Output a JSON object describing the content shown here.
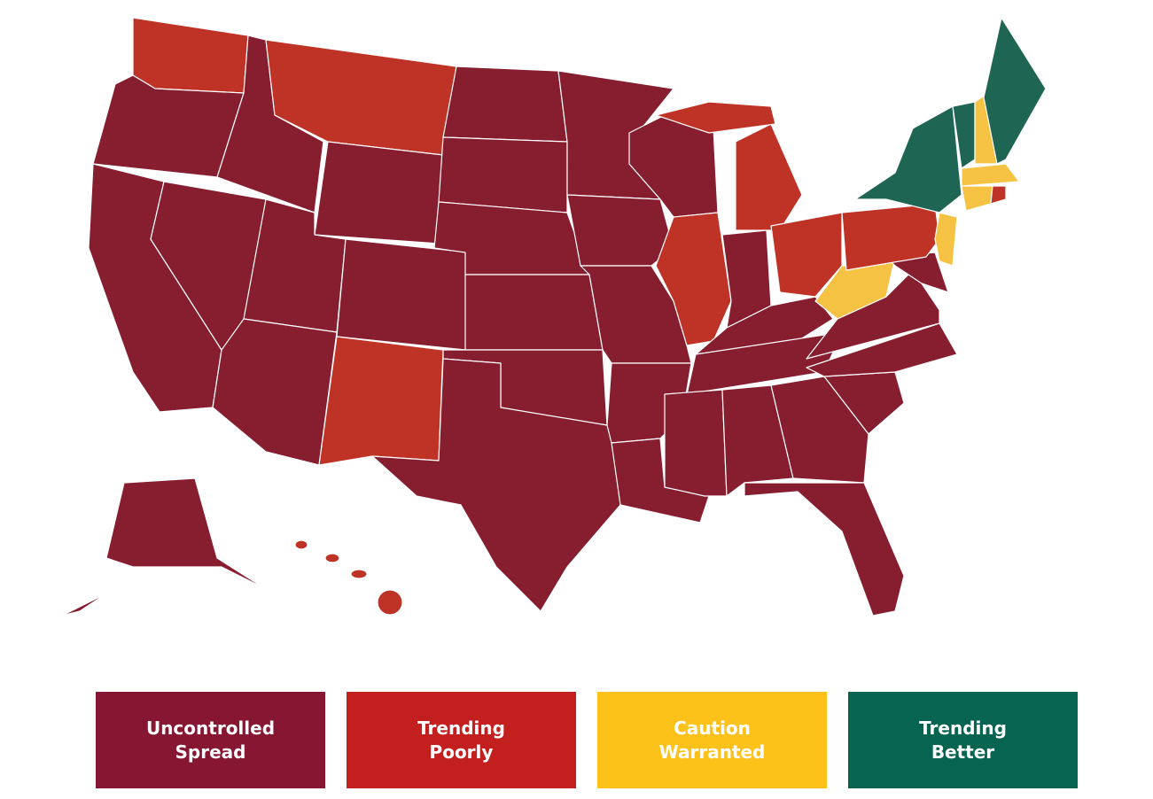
{
  "legend": {
    "items": [
      {
        "label": "Uncontrolled Spread",
        "color": "#861631"
      },
      {
        "label": "Trending Poorly",
        "color": "#c41f1f"
      },
      {
        "label": "Caution Warranted",
        "color": "#fcc219"
      },
      {
        "label": "Trending Better",
        "color": "#066450"
      }
    ]
  }
}
